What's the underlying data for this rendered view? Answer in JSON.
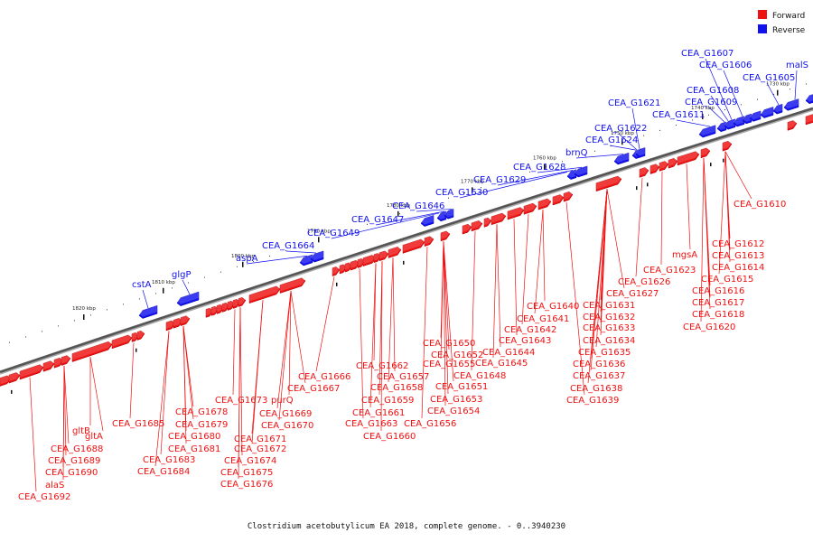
{
  "colors": {
    "forward": "#ee1111",
    "reverse": "#1111ee",
    "backbone": "#777777"
  },
  "legend": [
    {
      "label": "Forward",
      "color": "#ee1111"
    },
    {
      "label": "Reverse",
      "color": "#1111ee"
    }
  ],
  "caption": "Clostridium acetobutylicum EA 2018, complete genome. - 0..3940230",
  "ticks": [
    "1730 kbp",
    "1740 kbp",
    "1750 kbp",
    "1760 kbp",
    "1770 kbp",
    "1780 kbp",
    "1790 kbp",
    "1800 kbp",
    "1810 kbp",
    "1820 kbp"
  ],
  "reverse_labels": [
    "malS",
    "CEA_G1605",
    "CEA_G1606",
    "CEA_G1607",
    "CEA_G1608",
    "CEA_G1609",
    "CEA_G1611",
    "CEA_G1621",
    "CEA_G1622",
    "CEA_G1624",
    "brnQ",
    "CEA_G1628",
    "CEA_G1629",
    "CEA_G1630",
    "CEA_G1646",
    "CEA_G1647",
    "CEA_G1649",
    "CEA_G1664",
    "aspA",
    "glgP",
    "cstA"
  ],
  "forward_labels": [
    "CEA_G1610",
    "CEA_G1612",
    "CEA_G1613",
    "CEA_G1614",
    "CEA_G1615",
    "CEA_G1616",
    "CEA_G1617",
    "CEA_G1618",
    "CEA_G1620",
    "mgsA",
    "CEA_G1623",
    "CEA_G1626",
    "CEA_G1627",
    "CEA_G1631",
    "CEA_G1632",
    "CEA_G1633",
    "CEA_G1634",
    "CEA_G1635",
    "CEA_G1636",
    "CEA_G1637",
    "CEA_G1638",
    "CEA_G1639",
    "CEA_G1640",
    "CEA_G1641",
    "CEA_G1642",
    "CEA_G1643",
    "CEA_G1644",
    "CEA_G1645",
    "CEA_G1648",
    "CEA_G1650",
    "CEA_G1651",
    "CEA_G1652",
    "CEA_G1653",
    "CEA_G1654",
    "CEA_G1655",
    "CEA_G1656",
    "CEA_G1657",
    "CEA_G1658",
    "CEA_G1659",
    "CEA_G1660",
    "CEA_G1661",
    "CEA_G1662",
    "CEA_G1663",
    "CEA_G1666",
    "CEA_G1667",
    "purQ",
    "CEA_G1669",
    "CEA_G1670",
    "CEA_G1671",
    "CEA_G1672",
    "CEA_G1673",
    "CEA_G1674",
    "CEA_G1675",
    "CEA_G1676",
    "CEA_G1678",
    "CEA_G1679",
    "CEA_G1680",
    "CEA_G1681",
    "CEA_G1683",
    "CEA_G1684",
    "CEA_G1685",
    "gltA",
    "gltB",
    "CEA_G1688",
    "CEA_G1689",
    "CEA_G1690",
    "alaS",
    "CEA_G1692"
  ]
}
